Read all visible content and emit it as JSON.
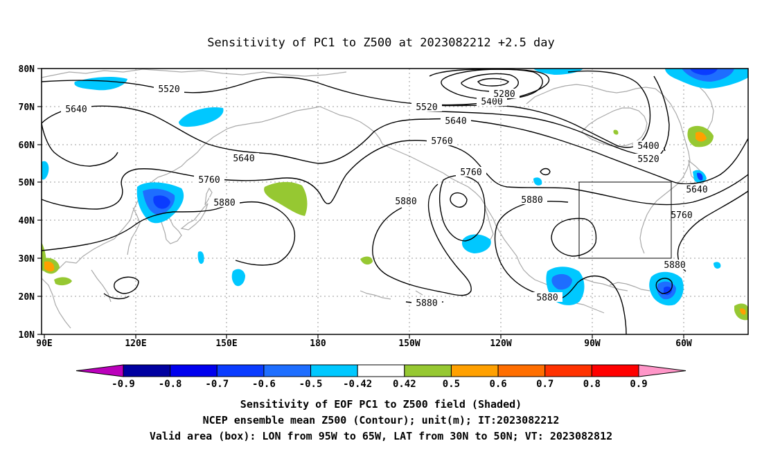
{
  "title": "Sensitivity of PC1 to Z500 at 2023082212 +2.5 day",
  "map": {
    "lat_ticks": [
      "80N",
      "70N",
      "60N",
      "50N",
      "40N",
      "30N",
      "20N",
      "10N"
    ],
    "lon_ticks": [
      "90E",
      "120E",
      "150E",
      "180",
      "150W",
      "120W",
      "90W",
      "60W"
    ],
    "grid": true,
    "box": {
      "lon_range": [
        "95W",
        "65W"
      ],
      "lat_range": [
        "30N",
        "50N"
      ]
    },
    "contour_labels": [
      {
        "text": "5520",
        "region": "north pacific high lat"
      },
      {
        "text": "5640",
        "region": "siberia"
      },
      {
        "text": "5640",
        "region": "west pacific"
      },
      {
        "text": "5760",
        "region": "kamchatka"
      },
      {
        "text": "5880",
        "region": "japan"
      },
      {
        "text": "5520",
        "region": "gulf of alaska"
      },
      {
        "text": "5400",
        "region": "arctic"
      },
      {
        "text": "5280",
        "region": "arctic low"
      },
      {
        "text": "5640",
        "region": "alaska"
      },
      {
        "text": "5760",
        "region": "northeast pacific"
      },
      {
        "text": "5760",
        "region": "west coast"
      },
      {
        "text": "5880",
        "region": "subtropical pacific"
      },
      {
        "text": "5880",
        "region": "rockies"
      },
      {
        "text": "5880",
        "region": "eastern pacific"
      },
      {
        "text": "5880",
        "region": "gulf of mexico"
      },
      {
        "text": "5400",
        "region": "hudson bay"
      },
      {
        "text": "5520",
        "region": "hudson bay"
      },
      {
        "text": "5640",
        "region": "newfoundland"
      },
      {
        "text": "5760",
        "region": "northeast us"
      },
      {
        "text": "5880",
        "region": "western atlantic"
      }
    ]
  },
  "colorbar": {
    "labels": [
      "-0.9",
      "-0.8",
      "-0.7",
      "-0.6",
      "-0.5",
      "-0.42",
      "0.42",
      "0.5",
      "0.6",
      "0.7",
      "0.8",
      "0.9"
    ],
    "colors": [
      "#bb00bb",
      "#0000a0",
      "#0000ee",
      "#0a3cff",
      "#1e6eff",
      "#00c8ff",
      "#ffffff",
      "#96c832",
      "#ffa000",
      "#ff6e00",
      "#ff3200",
      "#ff0000",
      "#ff96c8"
    ]
  },
  "footer": {
    "line1": "Sensitivity of EOF PC1 to Z500 field (Shaded)",
    "line2": "NCEP ensemble mean Z500 (Contour); unit(m); IT:2023082212",
    "line3": "Valid area (box): LON from 95W to 65W, LAT from 30N to 50N; VT: 2023082812"
  }
}
